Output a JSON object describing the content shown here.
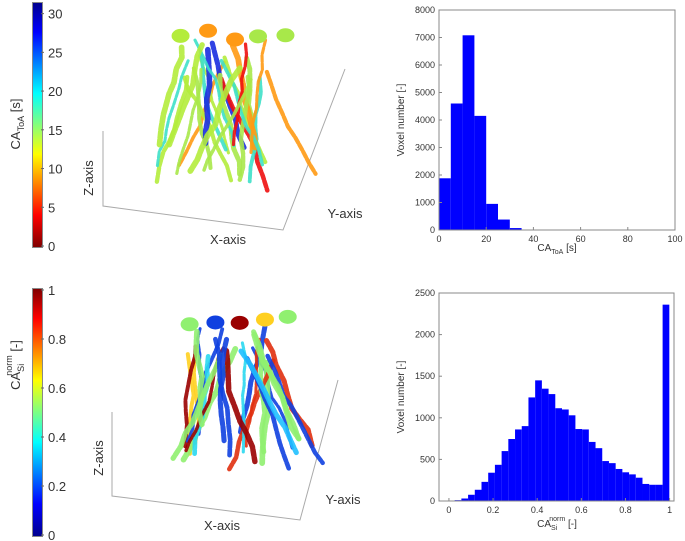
{
  "panels": {
    "top_left": {
      "colorbar": {
        "label_main": "CA",
        "label_sub": "ToA",
        "label_unit": " [s]",
        "ticks": [
          "0",
          "5",
          "10",
          "15",
          "20",
          "25",
          "30"
        ],
        "range": [
          0,
          31.5
        ],
        "colormap": "jet",
        "direction": "high-at-top"
      },
      "axes": {
        "x": "X-axis",
        "y": "Y-axis",
        "z": "Z-axis"
      }
    },
    "bottom_left": {
      "colorbar": {
        "label_main": "CA",
        "label_sub": "Si",
        "label_sup": "norm",
        "label_unit": " [-]",
        "ticks": [
          "0",
          "0.2",
          "0.4",
          "0.6",
          "0.8",
          "1"
        ],
        "range": [
          0,
          1
        ],
        "colormap": "jet",
        "direction": "high-at-top"
      },
      "axes": {
        "x": "X-axis",
        "y": "Y-axis",
        "z": "Z-axis"
      }
    }
  },
  "chart_data": [
    {
      "type": "bar",
      "subtype": "histogram",
      "xlabel_main": "CA",
      "xlabel_sub": "ToA",
      "xlabel_unit": " [s]",
      "ylabel": "Voxel number [-]",
      "xlim": [
        0,
        100
      ],
      "ylim": [
        0,
        8000
      ],
      "xticks": [
        "0",
        "20",
        "40",
        "60",
        "80",
        "100"
      ],
      "yticks": [
        "0",
        "1000",
        "2000",
        "3000",
        "4000",
        "5000",
        "6000",
        "7000",
        "8000"
      ],
      "bin_start": 0,
      "bin_width": 5,
      "values": [
        1880,
        4600,
        7080,
        4150,
        950,
        380,
        70,
        15,
        0,
        0,
        10,
        0,
        0,
        0,
        0,
        0,
        0,
        0,
        0,
        10
      ],
      "color": "#0000ff",
      "grid": false
    },
    {
      "type": "bar",
      "subtype": "histogram",
      "xlabel_main": "CA",
      "xlabel_sub": "Si",
      "xlabel_sup": "norm",
      "xlabel_unit": " [-]",
      "ylabel": "Voxel number [-]",
      "xlim": [
        -0.045,
        1.02
      ],
      "ylim": [
        0,
        2500
      ],
      "xticks": [
        "0",
        "0.2",
        "0.4",
        "0.6",
        "0.8",
        "1"
      ],
      "yticks": [
        "0",
        "500",
        "1000",
        "1500",
        "2000",
        "2500"
      ],
      "bin_start": 0.026,
      "bin_width": 0.0304,
      "values": [
        10,
        30,
        75,
        135,
        230,
        340,
        435,
        600,
        745,
        860,
        900,
        1245,
        1450,
        1350,
        1285,
        1115,
        1100,
        1030,
        865,
        860,
        710,
        635,
        480,
        455,
        385,
        345,
        320,
        280,
        205,
        195,
        195,
        2360
      ],
      "color": "#0000ff",
      "grid": false
    }
  ]
}
